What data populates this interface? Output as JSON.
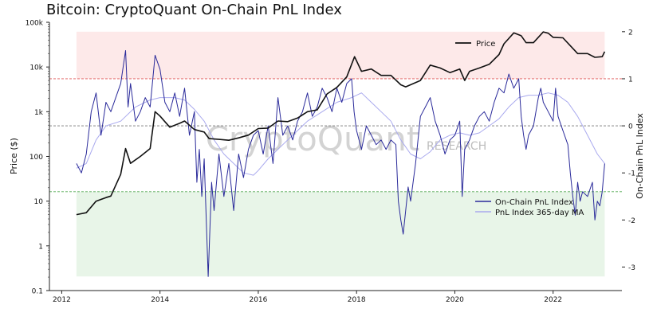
{
  "chart_data": {
    "type": "line",
    "title": "Bitcoin: CryptoQuant On-Chain PnL Index",
    "watermark": "CryptoQuant",
    "watermark_sub": "RESEARCH",
    "xlabel": "",
    "ylabel_left": "Price ($)",
    "ylabel_right": "On-Chain PnL Index",
    "x_range": [
      2011.75,
      2023.4
    ],
    "x_ticks": [
      2012,
      2014,
      2016,
      2018,
      2020,
      2022
    ],
    "y_left": {
      "scale": "log",
      "range": [
        0.1,
        100000
      ],
      "ticks": [
        {
          "v": 100000,
          "label": "100k"
        },
        {
          "v": 10000,
          "label": "10k"
        },
        {
          "v": 1000,
          "label": "1k"
        },
        {
          "v": 100,
          "label": "100"
        },
        {
          "v": 10,
          "label": "10"
        },
        {
          "v": 1,
          "label": "1"
        },
        {
          "v": 0.1,
          "label": "0.1"
        }
      ]
    },
    "y_right": {
      "scale": "linear",
      "range": [
        -3.5,
        2.2
      ],
      "ticks": [
        2,
        1,
        0,
        -1,
        -2,
        -3
      ]
    },
    "reference_lines": [
      {
        "y": 1,
        "color": "#e05555"
      },
      {
        "y": 0,
        "color": "#777777"
      },
      {
        "y": -1.4,
        "color": "#55aa55"
      }
    ],
    "zones": [
      {
        "from": 1,
        "to": 2,
        "color": "#fde9e9"
      },
      {
        "from": -3.2,
        "to": -1.4,
        "color": "#e8f5e8"
      }
    ],
    "zone_x_range": [
      2012.3,
      2023.05
    ],
    "legends": [
      {
        "position": "top-right",
        "entries": [
          {
            "name": "Price",
            "color": "#111111"
          }
        ]
      },
      {
        "position": "lower-right",
        "entries": [
          {
            "name": "On-Chain PnL Index",
            "color": "#2a2a9a"
          },
          {
            "name": "PnL Index 365-day MA",
            "color": "#a9a9ee"
          }
        ]
      }
    ],
    "series": [
      {
        "name": "Price",
        "axis": "left",
        "color": "#111111",
        "points": [
          [
            2012.3,
            5
          ],
          [
            2012.5,
            5.5
          ],
          [
            2012.7,
            10
          ],
          [
            2012.9,
            12
          ],
          [
            2013.0,
            13
          ],
          [
            2013.2,
            40
          ],
          [
            2013.3,
            150
          ],
          [
            2013.4,
            70
          ],
          [
            2013.6,
            100
          ],
          [
            2013.8,
            150
          ],
          [
            2013.9,
            1000
          ],
          [
            2014.0,
            800
          ],
          [
            2014.1,
            600
          ],
          [
            2014.2,
            450
          ],
          [
            2014.4,
            550
          ],
          [
            2014.5,
            620
          ],
          [
            2014.7,
            400
          ],
          [
            2014.9,
            350
          ],
          [
            2015.0,
            250
          ],
          [
            2015.2,
            240
          ],
          [
            2015.4,
            230
          ],
          [
            2015.6,
            260
          ],
          [
            2015.8,
            300
          ],
          [
            2016.0,
            420
          ],
          [
            2016.2,
            430
          ],
          [
            2016.4,
            620
          ],
          [
            2016.6,
            600
          ],
          [
            2016.8,
            720
          ],
          [
            2017.0,
            1000
          ],
          [
            2017.2,
            1100
          ],
          [
            2017.4,
            2500
          ],
          [
            2017.6,
            3500
          ],
          [
            2017.8,
            6000
          ],
          [
            2017.96,
            17000
          ],
          [
            2018.1,
            8000
          ],
          [
            2018.3,
            9000
          ],
          [
            2018.5,
            6500
          ],
          [
            2018.7,
            6500
          ],
          [
            2018.9,
            4000
          ],
          [
            2019.0,
            3600
          ],
          [
            2019.3,
            5000
          ],
          [
            2019.5,
            11000
          ],
          [
            2019.7,
            9500
          ],
          [
            2019.9,
            7500
          ],
          [
            2020.1,
            9000
          ],
          [
            2020.2,
            5000
          ],
          [
            2020.3,
            8000
          ],
          [
            2020.5,
            9500
          ],
          [
            2020.7,
            11500
          ],
          [
            2020.9,
            19000
          ],
          [
            2021.0,
            33000
          ],
          [
            2021.2,
            58000
          ],
          [
            2021.35,
            50000
          ],
          [
            2021.45,
            35000
          ],
          [
            2021.6,
            35000
          ],
          [
            2021.8,
            61000
          ],
          [
            2021.9,
            57000
          ],
          [
            2022.0,
            46000
          ],
          [
            2022.2,
            45000
          ],
          [
            2022.35,
            30000
          ],
          [
            2022.5,
            20000
          ],
          [
            2022.7,
            20000
          ],
          [
            2022.85,
            16500
          ],
          [
            2023.0,
            17000
          ],
          [
            2023.05,
            22000
          ]
        ]
      },
      {
        "name": "On-Chain PnL Index",
        "axis": "right",
        "color": "#2a2a9a",
        "points": [
          [
            2012.3,
            -0.8
          ],
          [
            2012.4,
            -1.0
          ],
          [
            2012.5,
            -0.6
          ],
          [
            2012.6,
            0.3
          ],
          [
            2012.7,
            0.7
          ],
          [
            2012.8,
            -0.2
          ],
          [
            2012.9,
            0.5
          ],
          [
            2013.0,
            0.3
          ],
          [
            2013.1,
            0.6
          ],
          [
            2013.2,
            0.9
          ],
          [
            2013.3,
            1.6
          ],
          [
            2013.35,
            0.4
          ],
          [
            2013.4,
            0.9
          ],
          [
            2013.5,
            0.1
          ],
          [
            2013.6,
            0.3
          ],
          [
            2013.7,
            0.6
          ],
          [
            2013.8,
            0.4
          ],
          [
            2013.9,
            1.5
          ],
          [
            2014.0,
            1.2
          ],
          [
            2014.1,
            0.5
          ],
          [
            2014.2,
            0.3
          ],
          [
            2014.3,
            0.7
          ],
          [
            2014.4,
            0.2
          ],
          [
            2014.5,
            0.8
          ],
          [
            2014.6,
            -0.2
          ],
          [
            2014.7,
            0.3
          ],
          [
            2014.75,
            -1.2
          ],
          [
            2014.8,
            -0.5
          ],
          [
            2014.85,
            -1.5
          ],
          [
            2014.9,
            -0.7
          ],
          [
            2014.98,
            -3.2
          ],
          [
            2015.05,
            -1.2
          ],
          [
            2015.1,
            -1.8
          ],
          [
            2015.2,
            -0.6
          ],
          [
            2015.3,
            -1.5
          ],
          [
            2015.4,
            -0.8
          ],
          [
            2015.5,
            -1.8
          ],
          [
            2015.6,
            -0.6
          ],
          [
            2015.7,
            -1.1
          ],
          [
            2015.8,
            -0.5
          ],
          [
            2015.9,
            -0.2
          ],
          [
            2016.0,
            -0.1
          ],
          [
            2016.1,
            -0.6
          ],
          [
            2016.2,
            0.0
          ],
          [
            2016.3,
            -0.8
          ],
          [
            2016.4,
            0.6
          ],
          [
            2016.5,
            -0.2
          ],
          [
            2016.6,
            0.0
          ],
          [
            2016.7,
            -0.3
          ],
          [
            2016.8,
            0.1
          ],
          [
            2016.9,
            0.3
          ],
          [
            2017.0,
            0.7
          ],
          [
            2017.1,
            0.2
          ],
          [
            2017.2,
            0.4
          ],
          [
            2017.3,
            0.8
          ],
          [
            2017.4,
            0.6
          ],
          [
            2017.5,
            0.3
          ],
          [
            2017.6,
            0.8
          ],
          [
            2017.7,
            0.5
          ],
          [
            2017.8,
            0.9
          ],
          [
            2017.9,
            1.0
          ],
          [
            2017.95,
            0.3
          ],
          [
            2018.0,
            -0.1
          ],
          [
            2018.1,
            -0.5
          ],
          [
            2018.2,
            0.0
          ],
          [
            2018.3,
            -0.2
          ],
          [
            2018.4,
            -0.4
          ],
          [
            2018.5,
            -0.3
          ],
          [
            2018.6,
            -0.5
          ],
          [
            2018.7,
            -0.3
          ],
          [
            2018.8,
            -0.4
          ],
          [
            2018.85,
            -1.6
          ],
          [
            2018.9,
            -2.0
          ],
          [
            2018.95,
            -2.3
          ],
          [
            2019.0,
            -1.8
          ],
          [
            2019.05,
            -1.3
          ],
          [
            2019.1,
            -1.6
          ],
          [
            2019.2,
            -0.8
          ],
          [
            2019.3,
            0.2
          ],
          [
            2019.4,
            0.4
          ],
          [
            2019.5,
            0.6
          ],
          [
            2019.6,
            0.1
          ],
          [
            2019.7,
            -0.2
          ],
          [
            2019.8,
            -0.6
          ],
          [
            2019.9,
            -0.3
          ],
          [
            2020.0,
            -0.2
          ],
          [
            2020.1,
            0.1
          ],
          [
            2020.15,
            -1.5
          ],
          [
            2020.2,
            -0.5
          ],
          [
            2020.3,
            -0.3
          ],
          [
            2020.4,
            0.0
          ],
          [
            2020.5,
            0.2
          ],
          [
            2020.6,
            0.3
          ],
          [
            2020.7,
            0.1
          ],
          [
            2020.8,
            0.5
          ],
          [
            2020.9,
            0.8
          ],
          [
            2021.0,
            0.7
          ],
          [
            2021.1,
            1.1
          ],
          [
            2021.2,
            0.8
          ],
          [
            2021.3,
            1.0
          ],
          [
            2021.35,
            0.2
          ],
          [
            2021.4,
            -0.2
          ],
          [
            2021.45,
            -0.5
          ],
          [
            2021.5,
            -0.2
          ],
          [
            2021.6,
            0.0
          ],
          [
            2021.7,
            0.6
          ],
          [
            2021.75,
            0.8
          ],
          [
            2021.8,
            0.5
          ],
          [
            2021.9,
            0.3
          ],
          [
            2022.0,
            0.1
          ],
          [
            2022.05,
            0.8
          ],
          [
            2022.1,
            0.2
          ],
          [
            2022.2,
            -0.1
          ],
          [
            2022.3,
            -0.4
          ],
          [
            2022.35,
            -1.0
          ],
          [
            2022.4,
            -1.5
          ],
          [
            2022.45,
            -1.9
          ],
          [
            2022.5,
            -1.2
          ],
          [
            2022.55,
            -1.6
          ],
          [
            2022.6,
            -1.4
          ],
          [
            2022.7,
            -1.5
          ],
          [
            2022.8,
            -1.2
          ],
          [
            2022.85,
            -2.0
          ],
          [
            2022.9,
            -1.6
          ],
          [
            2022.95,
            -1.7
          ],
          [
            2023.0,
            -1.4
          ],
          [
            2023.05,
            -0.8
          ]
        ]
      },
      {
        "name": "PnL Index 365-day MA",
        "axis": "right",
        "color": "#a9a9ee",
        "points": [
          [
            2012.3,
            -0.9
          ],
          [
            2012.5,
            -0.8
          ],
          [
            2012.7,
            -0.3
          ],
          [
            2012.9,
            0.0
          ],
          [
            2013.2,
            0.1
          ],
          [
            2013.5,
            0.4
          ],
          [
            2013.8,
            0.55
          ],
          [
            2014.0,
            0.6
          ],
          [
            2014.3,
            0.6
          ],
          [
            2014.5,
            0.55
          ],
          [
            2014.7,
            0.35
          ],
          [
            2014.9,
            0.1
          ],
          [
            2015.1,
            -0.3
          ],
          [
            2015.3,
            -0.6
          ],
          [
            2015.5,
            -0.8
          ],
          [
            2015.7,
            -1.0
          ],
          [
            2015.9,
            -1.05
          ],
          [
            2016.0,
            -0.95
          ],
          [
            2016.2,
            -0.7
          ],
          [
            2016.5,
            -0.4
          ],
          [
            2016.8,
            -0.1
          ],
          [
            2017.0,
            0.1
          ],
          [
            2017.3,
            0.3
          ],
          [
            2017.6,
            0.5
          ],
          [
            2017.9,
            0.6
          ],
          [
            2018.1,
            0.7
          ],
          [
            2018.3,
            0.5
          ],
          [
            2018.5,
            0.3
          ],
          [
            2018.7,
            0.1
          ],
          [
            2018.9,
            -0.3
          ],
          [
            2019.1,
            -0.6
          ],
          [
            2019.3,
            -0.7
          ],
          [
            2019.5,
            -0.55
          ],
          [
            2019.7,
            -0.3
          ],
          [
            2019.9,
            -0.2
          ],
          [
            2020.1,
            -0.15
          ],
          [
            2020.3,
            -0.2
          ],
          [
            2020.5,
            -0.15
          ],
          [
            2020.7,
            0.0
          ],
          [
            2020.9,
            0.15
          ],
          [
            2021.1,
            0.4
          ],
          [
            2021.3,
            0.6
          ],
          [
            2021.5,
            0.65
          ],
          [
            2021.7,
            0.65
          ],
          [
            2021.9,
            0.7
          ],
          [
            2022.1,
            0.65
          ],
          [
            2022.3,
            0.5
          ],
          [
            2022.5,
            0.2
          ],
          [
            2022.7,
            -0.2
          ],
          [
            2022.9,
            -0.6
          ],
          [
            2023.05,
            -0.8
          ]
        ]
      }
    ]
  }
}
